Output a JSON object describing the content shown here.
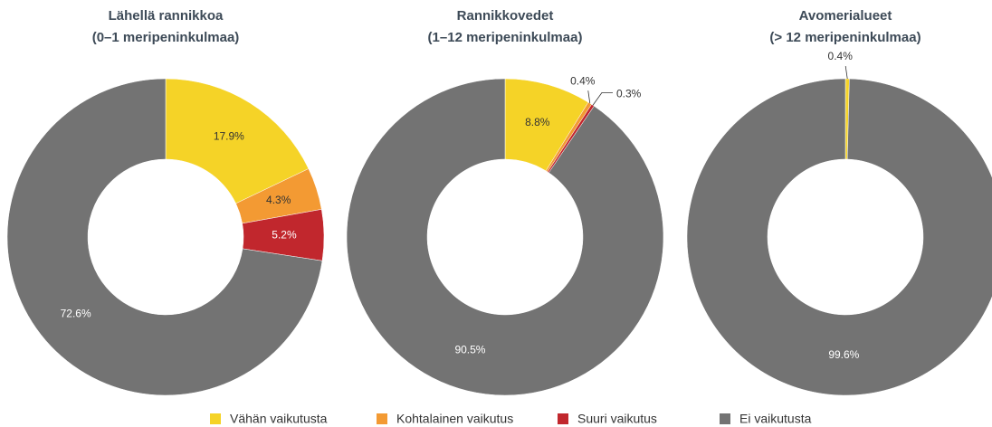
{
  "chart_data": [
    {
      "type": "pie",
      "title": "Lähellä rannikkoa",
      "subtitle": "(0–1 meripeninkulmaa)",
      "categories": [
        "Vähän vaikutusta",
        "Kohtalainen vaikutus",
        "Suuri vaikutus",
        "Ei vaikutusta"
      ],
      "values": [
        17.9,
        4.3,
        5.2,
        72.6
      ],
      "value_labels": [
        "17.9%",
        "4.3%",
        "5.2%",
        "72.6%"
      ],
      "colors": [
        "#f5d327",
        "#f39a33",
        "#c1272d",
        "#737373"
      ]
    },
    {
      "type": "pie",
      "title": "Rannikkovedet",
      "subtitle": "(1–12 meripeninkulmaa)",
      "categories": [
        "Vähän vaikutusta",
        "Kohtalainen vaikutus",
        "Suuri vaikutus",
        "Ei vaikutusta"
      ],
      "values": [
        8.8,
        0.4,
        0.3,
        90.5
      ],
      "value_labels": [
        "8.8%",
        "0.4%",
        "0.3%",
        "90.5%"
      ],
      "colors": [
        "#f5d327",
        "#f39a33",
        "#c1272d",
        "#737373"
      ]
    },
    {
      "type": "pie",
      "title": "Avomerialueet",
      "subtitle": "(> 12 meripeninkulmaa)",
      "categories": [
        "Vähän vaikutusta",
        "Ei vaikutusta"
      ],
      "values": [
        0.4,
        99.6
      ],
      "value_labels": [
        "0.4%",
        "99.6%"
      ],
      "colors": [
        "#f5d327",
        "#737373"
      ]
    }
  ]
}
